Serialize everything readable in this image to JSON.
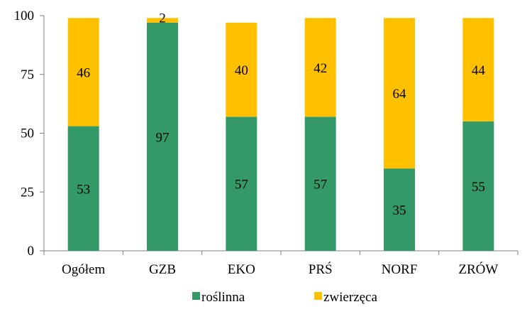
{
  "chart_data": {
    "type": "bar",
    "stacked": true,
    "categories": [
      "Ogółem",
      "GZB",
      "EKO",
      "PRŚ",
      "NORF",
      "ZRÓW"
    ],
    "series": [
      {
        "name": "roślinna",
        "values": [
          53,
          97,
          57,
          57,
          35,
          55
        ],
        "color": "#339966"
      },
      {
        "name": "zwierzęca",
        "values": [
          46,
          2,
          40,
          42,
          64,
          44
        ],
        "color": "#ffc000"
      }
    ],
    "ylim": [
      0,
      100
    ],
    "yticks": [
      0,
      25,
      50,
      75,
      100
    ],
    "title": "",
    "xlabel": "",
    "ylabel": "",
    "grid": false,
    "legend": "bottom"
  }
}
